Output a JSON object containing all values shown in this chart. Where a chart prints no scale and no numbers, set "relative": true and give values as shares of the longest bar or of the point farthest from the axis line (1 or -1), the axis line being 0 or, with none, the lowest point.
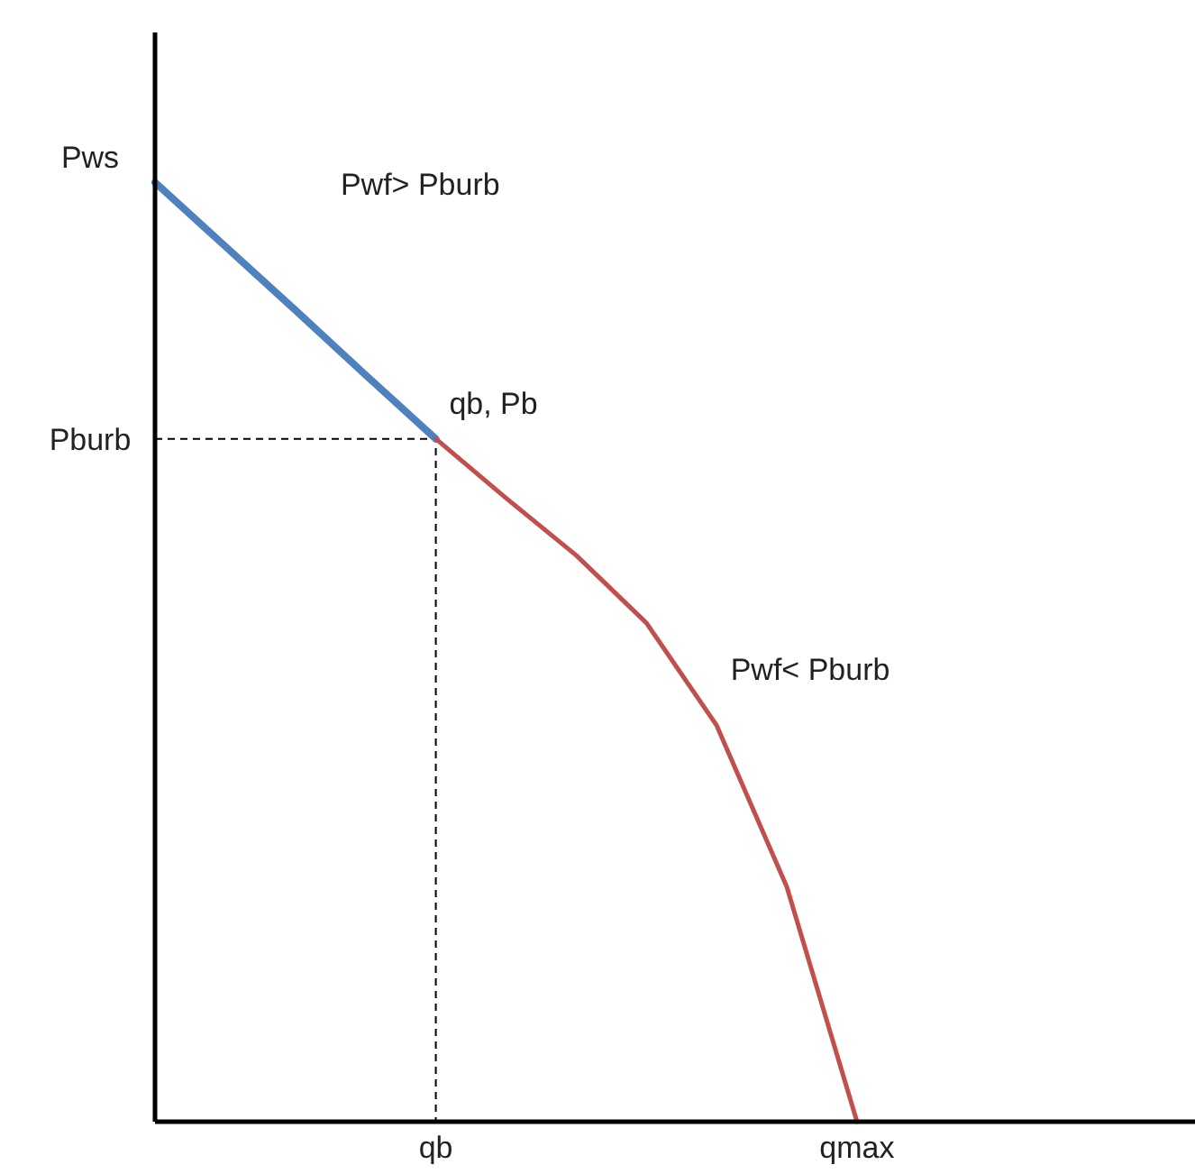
{
  "chart_data": {
    "type": "line",
    "relative": true,
    "categories": [
      null,
      null,
      null,
      null,
      null,
      null,
      null,
      null,
      null,
      null,
      null
    ],
    "series": [
      {
        "color": "#4f81bd",
        "values": [
          1,
          0.932,
          0.864,
          0.795,
          0.727,
          null,
          null,
          null,
          null,
          null,
          null
        ]
      },
      {
        "color": "#c0504d",
        "values": [
          null,
          null,
          null,
          null,
          0.727,
          0.664,
          0.603,
          0.531,
          0.422,
          0.25,
          0
        ]
      }
    ],
    "ref_lines": [
      {
        "axis": "y",
        "value": 0.727,
        "label": "Pburb",
        "line_style": "dashed",
        "color": "#000000"
      }
    ],
    "annotations": [
      "Pwf> Pburb",
      "Pwf< Pburb",
      "qb",
      "qmax",
      "qb, Pb",
      "Pws"
    ],
    "marker": "none",
    "line_style": "solid"
  }
}
